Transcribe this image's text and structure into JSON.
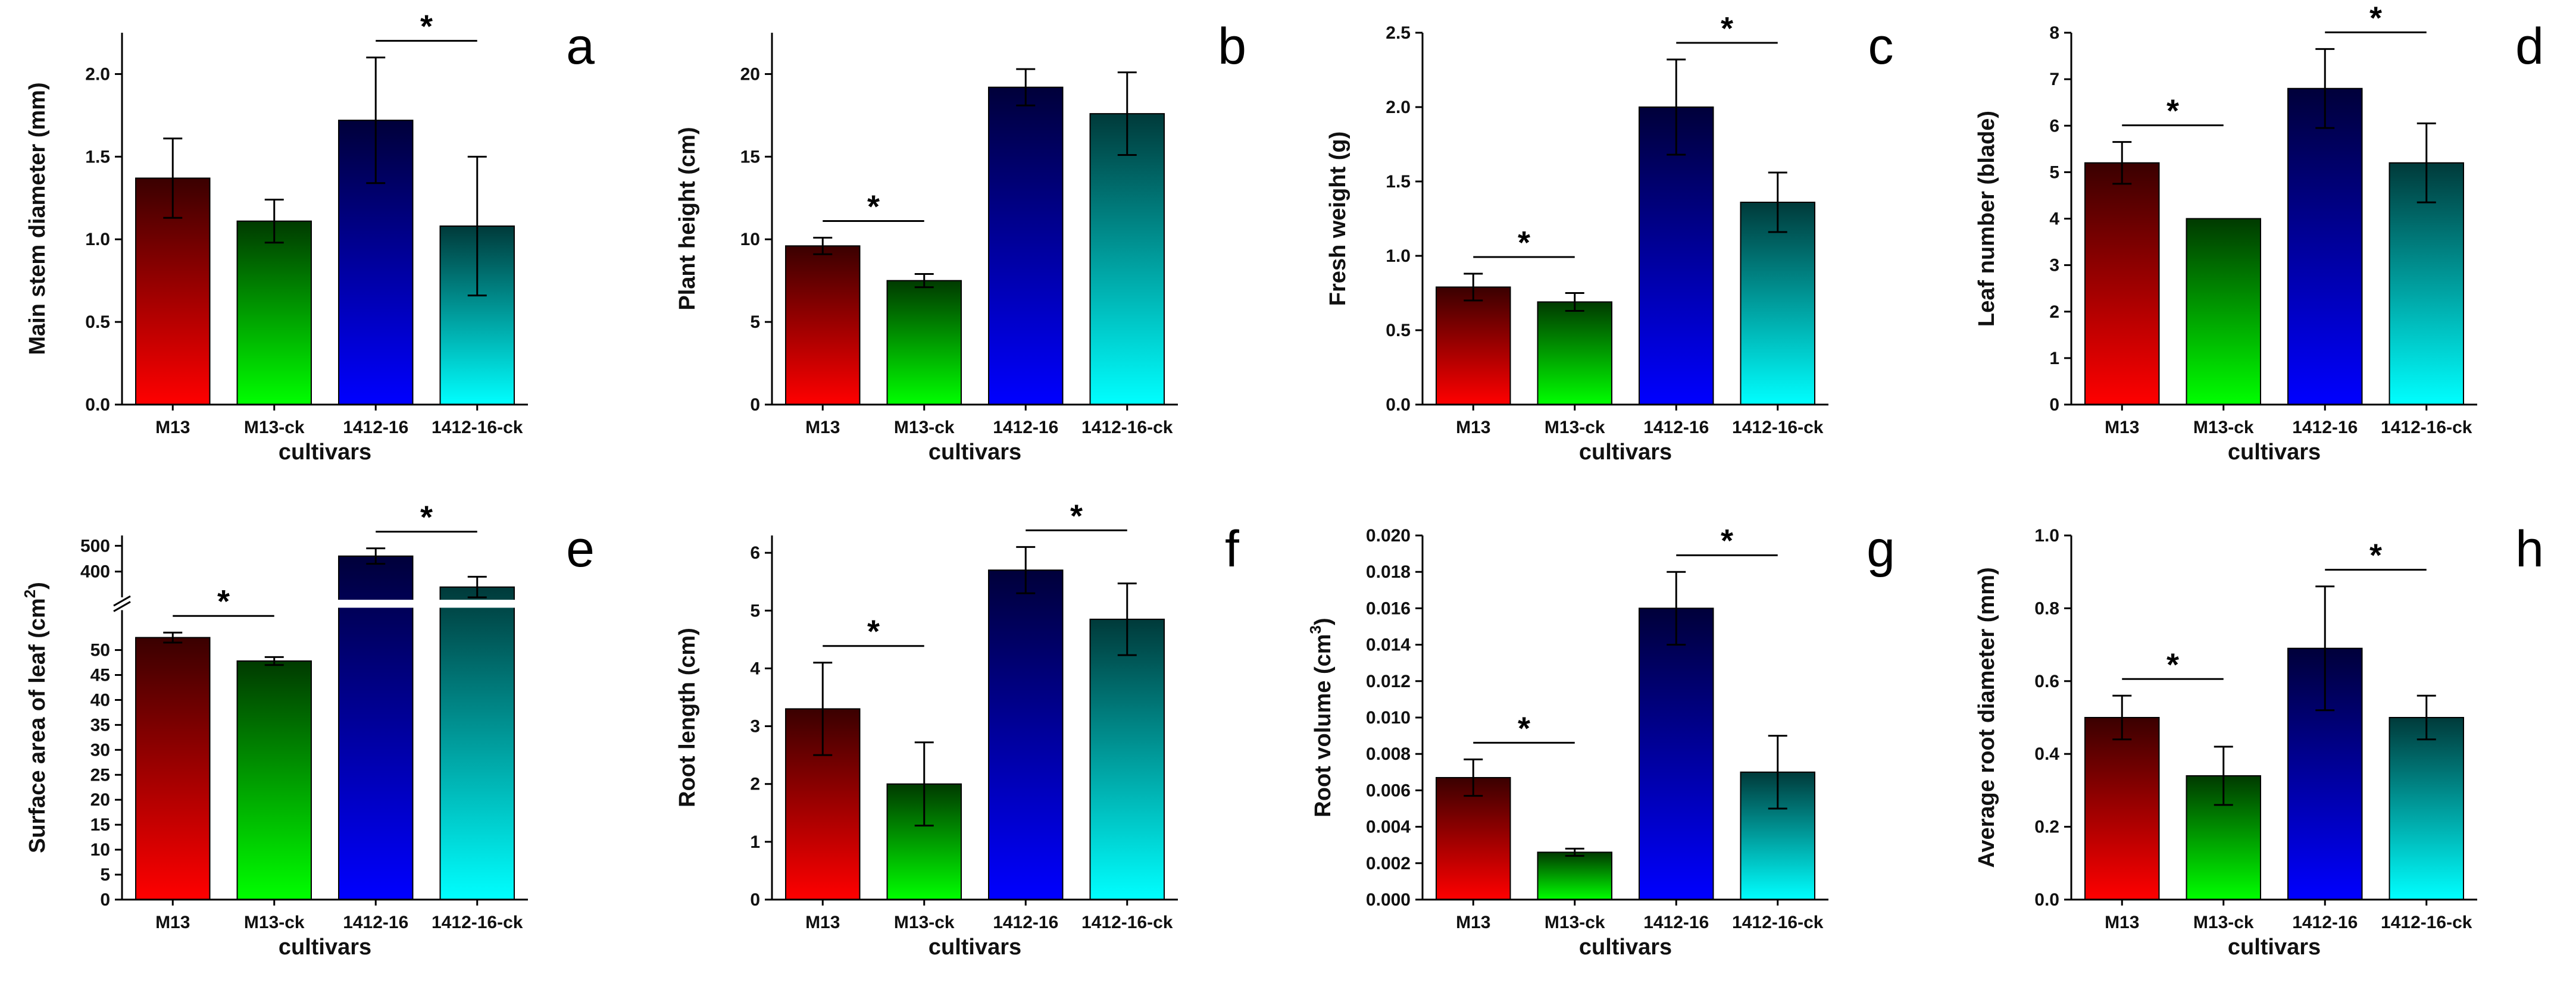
{
  "figure": {
    "categories": [
      "M13",
      "M13-ck",
      "1412-16",
      "1412-16-ck"
    ],
    "xlabel": "cultivars",
    "colors": {
      "bottom": [
        "#ff0000",
        "#00ff00",
        "#0000ff",
        "#00ffff"
      ],
      "top": [
        "#3a0000",
        "#003a00",
        "#00003a",
        "#003a3a"
      ]
    }
  },
  "chart_data": [
    {
      "panel": "a",
      "type": "bar",
      "title": "",
      "categories": [
        "M13",
        "M13-ck",
        "1412-16",
        "1412-16-ck"
      ],
      "xlabel": "cultivars",
      "ylabel": "Main stem diameter (mm)",
      "values": [
        1.37,
        1.11,
        1.72,
        1.08
      ],
      "errors": [
        0.24,
        0.13,
        0.38,
        0.42
      ],
      "ylim": [
        0,
        2.25
      ],
      "ticks": [
        0,
        0.5,
        1,
        1.5,
        2
      ],
      "tick_labels": [
        "0.0",
        "0.5",
        "1.0",
        "1.5",
        "2.0"
      ],
      "significance": [
        {
          "from": 2,
          "to": 3,
          "label": "*"
        }
      ]
    },
    {
      "panel": "b",
      "type": "bar",
      "title": "",
      "categories": [
        "M13",
        "M13-ck",
        "1412-16",
        "1412-16-ck"
      ],
      "xlabel": "cultivars",
      "ylabel": "Plant height (cm)",
      "values": [
        9.6,
        7.5,
        19.2,
        17.6
      ],
      "errors": [
        0.5,
        0.4,
        1.1,
        2.5
      ],
      "ylim": [
        0,
        22.5
      ],
      "ticks": [
        0,
        5,
        10,
        15,
        20
      ],
      "tick_labels": [
        "0",
        "5",
        "10",
        "15",
        "20"
      ],
      "significance": [
        {
          "from": 0,
          "to": 1,
          "label": "*"
        }
      ]
    },
    {
      "panel": "c",
      "type": "bar",
      "title": "",
      "categories": [
        "M13",
        "M13-ck",
        "1412-16",
        "1412-16-ck"
      ],
      "xlabel": "cultivars",
      "ylabel": "Fresh weight (g)",
      "values": [
        0.79,
        0.69,
        2.0,
        1.36
      ],
      "errors": [
        0.09,
        0.06,
        0.32,
        0.2
      ],
      "ylim": [
        0,
        2.5
      ],
      "ticks": [
        0,
        0.5,
        1,
        1.5,
        2,
        2.5
      ],
      "tick_labels": [
        "0.0",
        "0.5",
        "1.0",
        "1.5",
        "2.0",
        "2.5"
      ],
      "significance": [
        {
          "from": 0,
          "to": 1,
          "label": "*"
        },
        {
          "from": 2,
          "to": 3,
          "label": "*"
        }
      ]
    },
    {
      "panel": "d",
      "type": "bar",
      "title": "",
      "categories": [
        "M13",
        "M13-ck",
        "1412-16",
        "1412-16-ck"
      ],
      "xlabel": "cultivars",
      "ylabel": "Leaf number (blade)",
      "values": [
        5.2,
        4.0,
        6.8,
        5.2
      ],
      "errors": [
        0.45,
        0,
        0.85,
        0.85
      ],
      "ylim": [
        0,
        8
      ],
      "ticks": [
        0,
        1,
        2,
        3,
        4,
        5,
        6,
        7,
        8
      ],
      "tick_labels": [
        "0",
        "1",
        "2",
        "3",
        "4",
        "5",
        "6",
        "7",
        "8"
      ],
      "significance": [
        {
          "from": 0,
          "to": 1,
          "label": "*"
        },
        {
          "from": 2,
          "to": 3,
          "label": "*"
        }
      ]
    },
    {
      "panel": "e",
      "type": "bar",
      "title": "",
      "categories": [
        "M13",
        "M13-ck",
        "1412-16",
        "1412-16-ck"
      ],
      "xlabel": "cultivars",
      "ylabel": "Surface area of leaf (cm",
      "ylabel_sup": "2",
      "ylabel_end": ")",
      "values": [
        52.5,
        47.8,
        460,
        340
      ],
      "errors": [
        1.0,
        0.8,
        30,
        40
      ],
      "axis_break": [
        58,
        300
      ],
      "ylim_lower": [
        0,
        58
      ],
      "ylim_upper": [
        300,
        540
      ],
      "ticks_lower": [
        0,
        5,
        10,
        15,
        20,
        25,
        30,
        35,
        40,
        45,
        50
      ],
      "ticks_upper": [
        400,
        500
      ],
      "tick_labels_lower": [
        "0",
        "5",
        "10",
        "15",
        "20",
        "25",
        "30",
        "35",
        "40",
        "45",
        "50"
      ],
      "tick_labels_upper": [
        "400",
        "500"
      ],
      "significance": [
        {
          "from": 0,
          "to": 1,
          "label": "*"
        },
        {
          "from": 2,
          "to": 3,
          "label": "*"
        }
      ]
    },
    {
      "panel": "f",
      "type": "bar",
      "title": "",
      "categories": [
        "M13",
        "M13-ck",
        "1412-16",
        "1412-16-ck"
      ],
      "xlabel": "cultivars",
      "ylabel": "Root length (cm)",
      "values": [
        3.3,
        2.0,
        5.7,
        4.85
      ],
      "errors": [
        0.8,
        0.72,
        0.4,
        0.62
      ],
      "ylim": [
        0,
        6.3
      ],
      "ticks": [
        0,
        1,
        2,
        3,
        4,
        5,
        6
      ],
      "tick_labels": [
        "0",
        "1",
        "2",
        "3",
        "4",
        "5",
        "6"
      ],
      "significance": [
        {
          "from": 0,
          "to": 1,
          "label": "*"
        },
        {
          "from": 2,
          "to": 3,
          "label": "*"
        }
      ]
    },
    {
      "panel": "g",
      "type": "bar",
      "title": "",
      "categories": [
        "M13",
        "M13-ck",
        "1412-16",
        "1412-16-ck"
      ],
      "xlabel": "cultivars",
      "ylabel": "Root volume (cm",
      "ylabel_sup": "3",
      "ylabel_end": ")",
      "values": [
        0.0067,
        0.0026,
        0.016,
        0.007
      ],
      "errors": [
        0.001,
        0.0002,
        0.002,
        0.002
      ],
      "ylim": [
        0,
        0.02
      ],
      "ticks": [
        0,
        0.002,
        0.004,
        0.006,
        0.008,
        0.01,
        0.012,
        0.014,
        0.016,
        0.018,
        0.02
      ],
      "tick_labels": [
        "0.000",
        "0.002",
        "0.004",
        "0.006",
        "0.008",
        "0.010",
        "0.012",
        "0.014",
        "0.016",
        "0.018",
        "0.020"
      ],
      "significance": [
        {
          "from": 0,
          "to": 1,
          "label": "*"
        },
        {
          "from": 2,
          "to": 3,
          "label": "*"
        }
      ]
    },
    {
      "panel": "h",
      "type": "bar",
      "title": "",
      "categories": [
        "M13",
        "M13-ck",
        "1412-16",
        "1412-16-ck"
      ],
      "xlabel": "cultivars",
      "ylabel": "Average root diameter (mm)",
      "values": [
        0.5,
        0.34,
        0.69,
        0.5
      ],
      "errors": [
        0.06,
        0.08,
        0.17,
        0.06
      ],
      "ylim": [
        0,
        1.0
      ],
      "ticks": [
        0,
        0.2,
        0.4,
        0.6,
        0.8,
        1.0
      ],
      "tick_labels": [
        "0.0",
        "0.2",
        "0.4",
        "0.6",
        "0.8",
        "1.0"
      ],
      "significance": [
        {
          "from": 0,
          "to": 1,
          "label": "*"
        },
        {
          "from": 2,
          "to": 3,
          "label": "*"
        }
      ]
    }
  ]
}
